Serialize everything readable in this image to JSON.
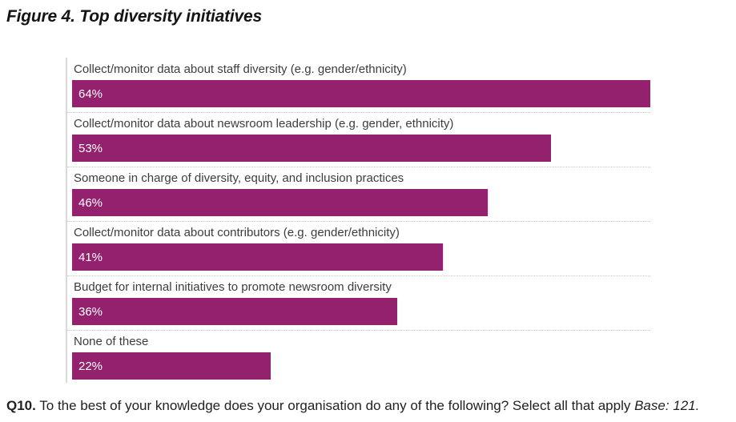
{
  "title": "Figure 4. Top diversity initiatives",
  "chart_data": {
    "type": "bar",
    "orientation": "horizontal",
    "categories": [
      "Collect/monitor data about staff diversity (e.g. gender/ethnicity)",
      "Collect/monitor data about newsroom leadership (e.g. gender, ethnicity)",
      "Someone in charge of diversity, equity, and inclusion practices",
      "Collect/monitor data about contributors (e.g. gender/ethnicity)",
      "Budget for internal initiatives to promote newsroom diversity",
      "None of these"
    ],
    "values": [
      64,
      53,
      46,
      41,
      36,
      22
    ],
    "value_labels": [
      "64%",
      "53%",
      "46%",
      "41%",
      "36%",
      "22%"
    ],
    "unit": "%",
    "xlim": [
      0,
      64
    ],
    "bar_color": "#93216D",
    "value_label_color": "#ffffff",
    "grid": "dotted-row-separators",
    "legend": "none",
    "axis_line_color": "#d9d9d9"
  },
  "footnote": {
    "q_label": "Q10.",
    "question": " To the best of your knowledge does your organisation do any of the following? Select all that apply ",
    "base": "Base: 121."
  }
}
